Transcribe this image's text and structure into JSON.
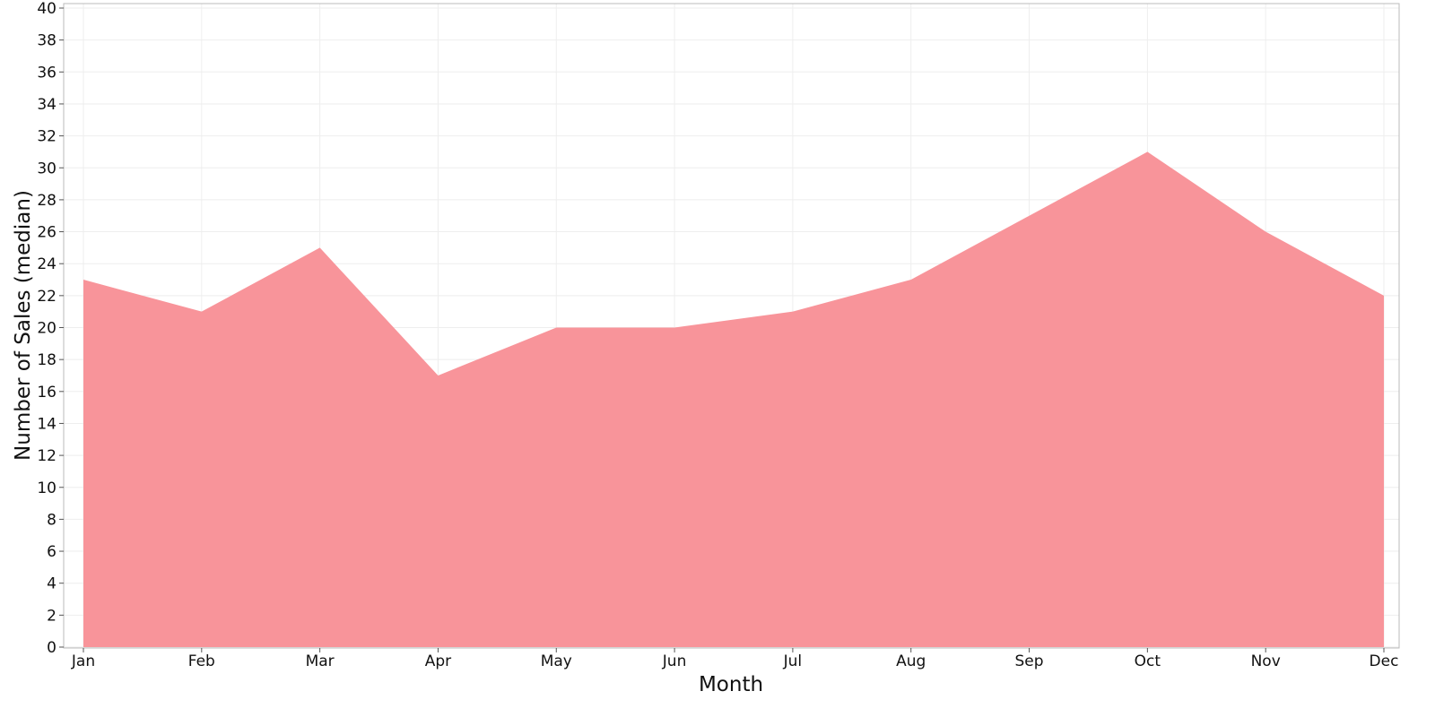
{
  "chart_data": {
    "type": "area",
    "categories": [
      "Jan",
      "Feb",
      "Mar",
      "Apr",
      "May",
      "Jun",
      "Jul",
      "Aug",
      "Sep",
      "Oct",
      "Nov",
      "Dec"
    ],
    "series": [
      {
        "values": [
          23,
          21,
          25,
          17,
          20,
          20,
          21,
          23,
          27,
          31,
          26,
          22
        ],
        "color": "#f8949a"
      }
    ],
    "title": "",
    "xlabel": "Month",
    "ylabel": "Number of Sales (median)",
    "ylim": [
      0,
      40
    ],
    "yticks": [
      0,
      2,
      4,
      6,
      8,
      10,
      12,
      14,
      16,
      18,
      20,
      22,
      24,
      26,
      28,
      30,
      32,
      34,
      36,
      38,
      40
    ],
    "grid": true,
    "legend": "none",
    "colors": {
      "area": "#f8949a",
      "grid": "#eeeeee",
      "frame": "#bbbbbb",
      "text": "#111111"
    }
  }
}
